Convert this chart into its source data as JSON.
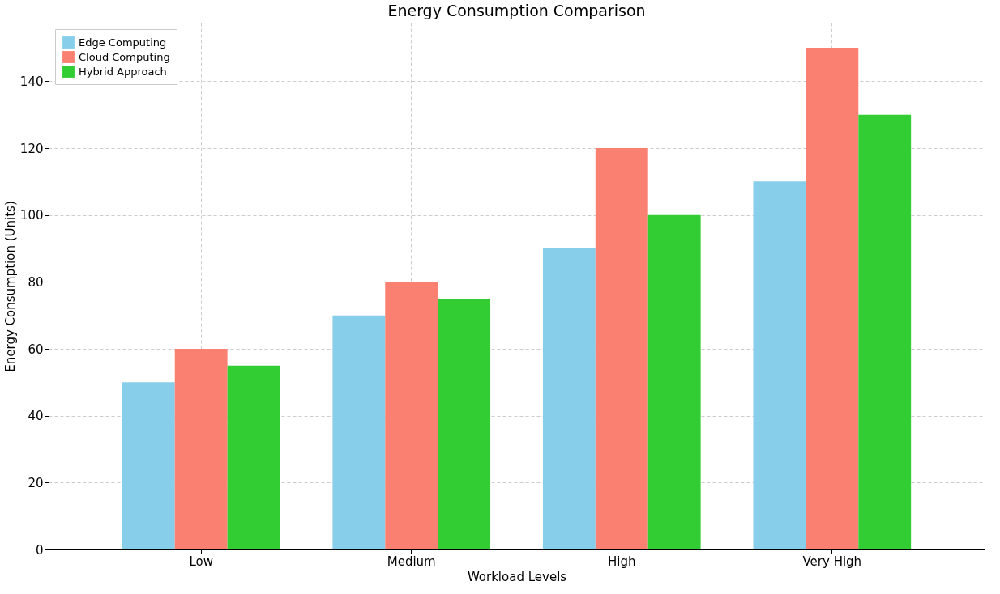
{
  "chart_data": {
    "type": "bar",
    "title": "Energy Consumption Comparison",
    "xlabel": "Workload Levels",
    "ylabel": "Energy Consumption (Units)",
    "categories": [
      "Low",
      "Medium",
      "High",
      "Very High"
    ],
    "series": [
      {
        "name": "Edge Computing",
        "color": "#87ceeb",
        "values": [
          50,
          70,
          90,
          110
        ]
      },
      {
        "name": "Cloud Computing",
        "color": "#fa8072",
        "values": [
          60,
          80,
          120,
          150
        ]
      },
      {
        "name": "Hybrid Approach",
        "color": "#32cd32",
        "values": [
          55,
          75,
          100,
          130
        ]
      }
    ],
    "ylim": [
      0,
      157.5
    ],
    "yticks": [
      0,
      20,
      40,
      60,
      80,
      100,
      120,
      140
    ],
    "grid": true,
    "legend": "top left"
  }
}
